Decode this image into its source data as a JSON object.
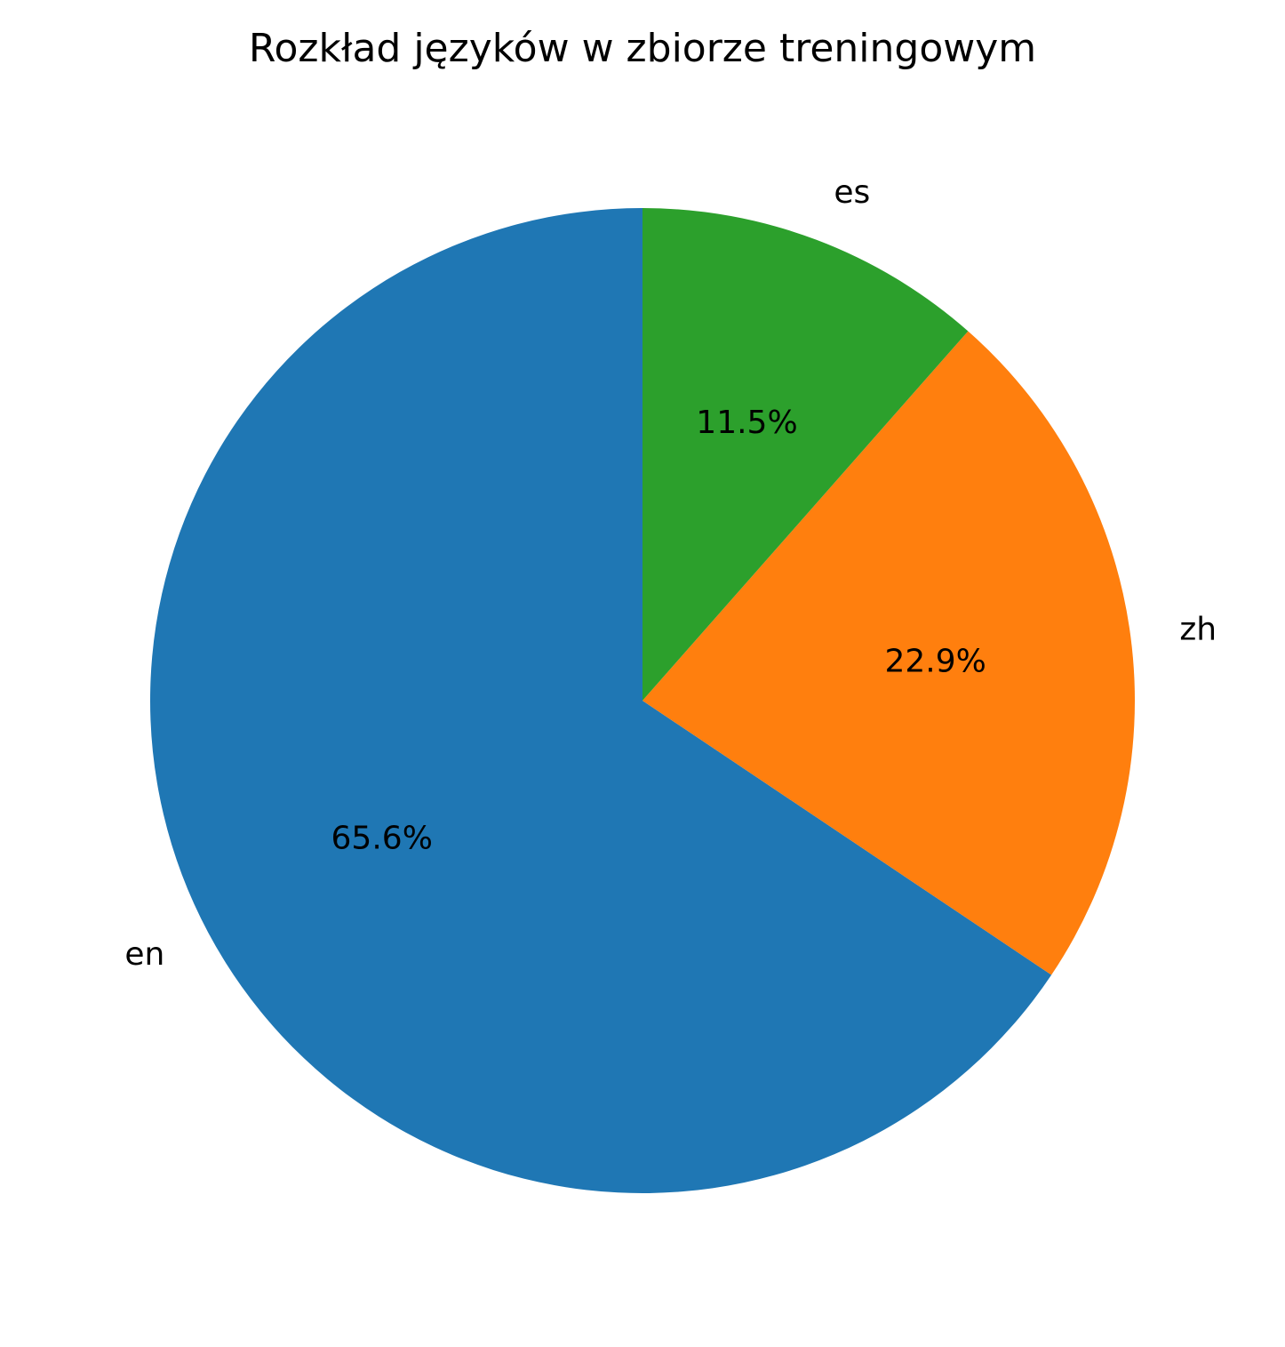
{
  "chart_data": {
    "type": "pie",
    "title": "Rozkład języków w zbiorze treningowym",
    "categories": [
      "en",
      "zh",
      "es"
    ],
    "values": [
      65.6,
      22.9,
      11.5
    ],
    "percent_labels": [
      "65.6%",
      "22.9%",
      "11.5%"
    ],
    "colors": [
      "#1f77b4",
      "#ff7f0e",
      "#2ca02c"
    ],
    "start_angle_deg": 90,
    "direction": "counterclockwise"
  }
}
